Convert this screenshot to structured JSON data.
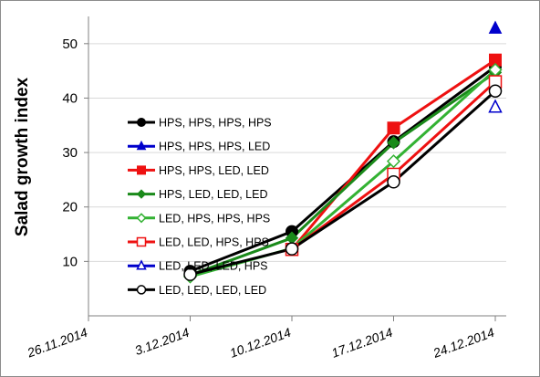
{
  "chart_data": {
    "type": "line",
    "ylabel": "Salad growth index",
    "xlabel": "",
    "ylim": [
      0,
      55
    ],
    "yticks": [
      10,
      20,
      30,
      40,
      50
    ],
    "x": [
      "26.11.2014",
      "3.12.2014",
      "10.12.2014",
      "17.12.2014",
      "24.12.2014"
    ],
    "grid": "horizontal",
    "legend_position": "left",
    "series": [
      {
        "name": "HPS, HPS, HPS, HPS",
        "color": "#000000",
        "marker": "filled-circle",
        "values": [
          null,
          8.2,
          15.5,
          32.0,
          45.8
        ]
      },
      {
        "name": "HPS, HPS, HPS, LED",
        "color": "#0000cc",
        "marker": "filled-triangle",
        "values": [
          null,
          null,
          null,
          null,
          52.8
        ]
      },
      {
        "name": "HPS, HPS, LED, LED",
        "color": "#ee1111",
        "marker": "filled-square",
        "values": [
          null,
          null,
          12.2,
          34.5,
          47.0
        ]
      },
      {
        "name": "HPS, LED, LED, LED",
        "color": "#1a8a1a",
        "marker": "filled-diamond",
        "values": [
          null,
          7.5,
          14.3,
          31.8,
          44.7
        ]
      },
      {
        "name": "LED, HPS, HPS, HPS",
        "color": "#33b233",
        "marker": "open-diamond",
        "values": [
          null,
          7.2,
          12.4,
          28.4,
          45.2
        ]
      },
      {
        "name": "LED, LED, HPS, HPS",
        "color": "#ee1111",
        "marker": "open-square",
        "values": [
          null,
          null,
          12.2,
          26.0,
          43.0
        ]
      },
      {
        "name": "LED, LED, LED, HPS",
        "color": "#0000cc",
        "marker": "open-triangle",
        "values": [
          null,
          null,
          null,
          null,
          38.3
        ]
      },
      {
        "name": "LED, LED, LED, LED",
        "color": "#000000",
        "marker": "open-circle",
        "values": [
          null,
          7.6,
          12.3,
          24.6,
          41.3
        ]
      }
    ]
  }
}
